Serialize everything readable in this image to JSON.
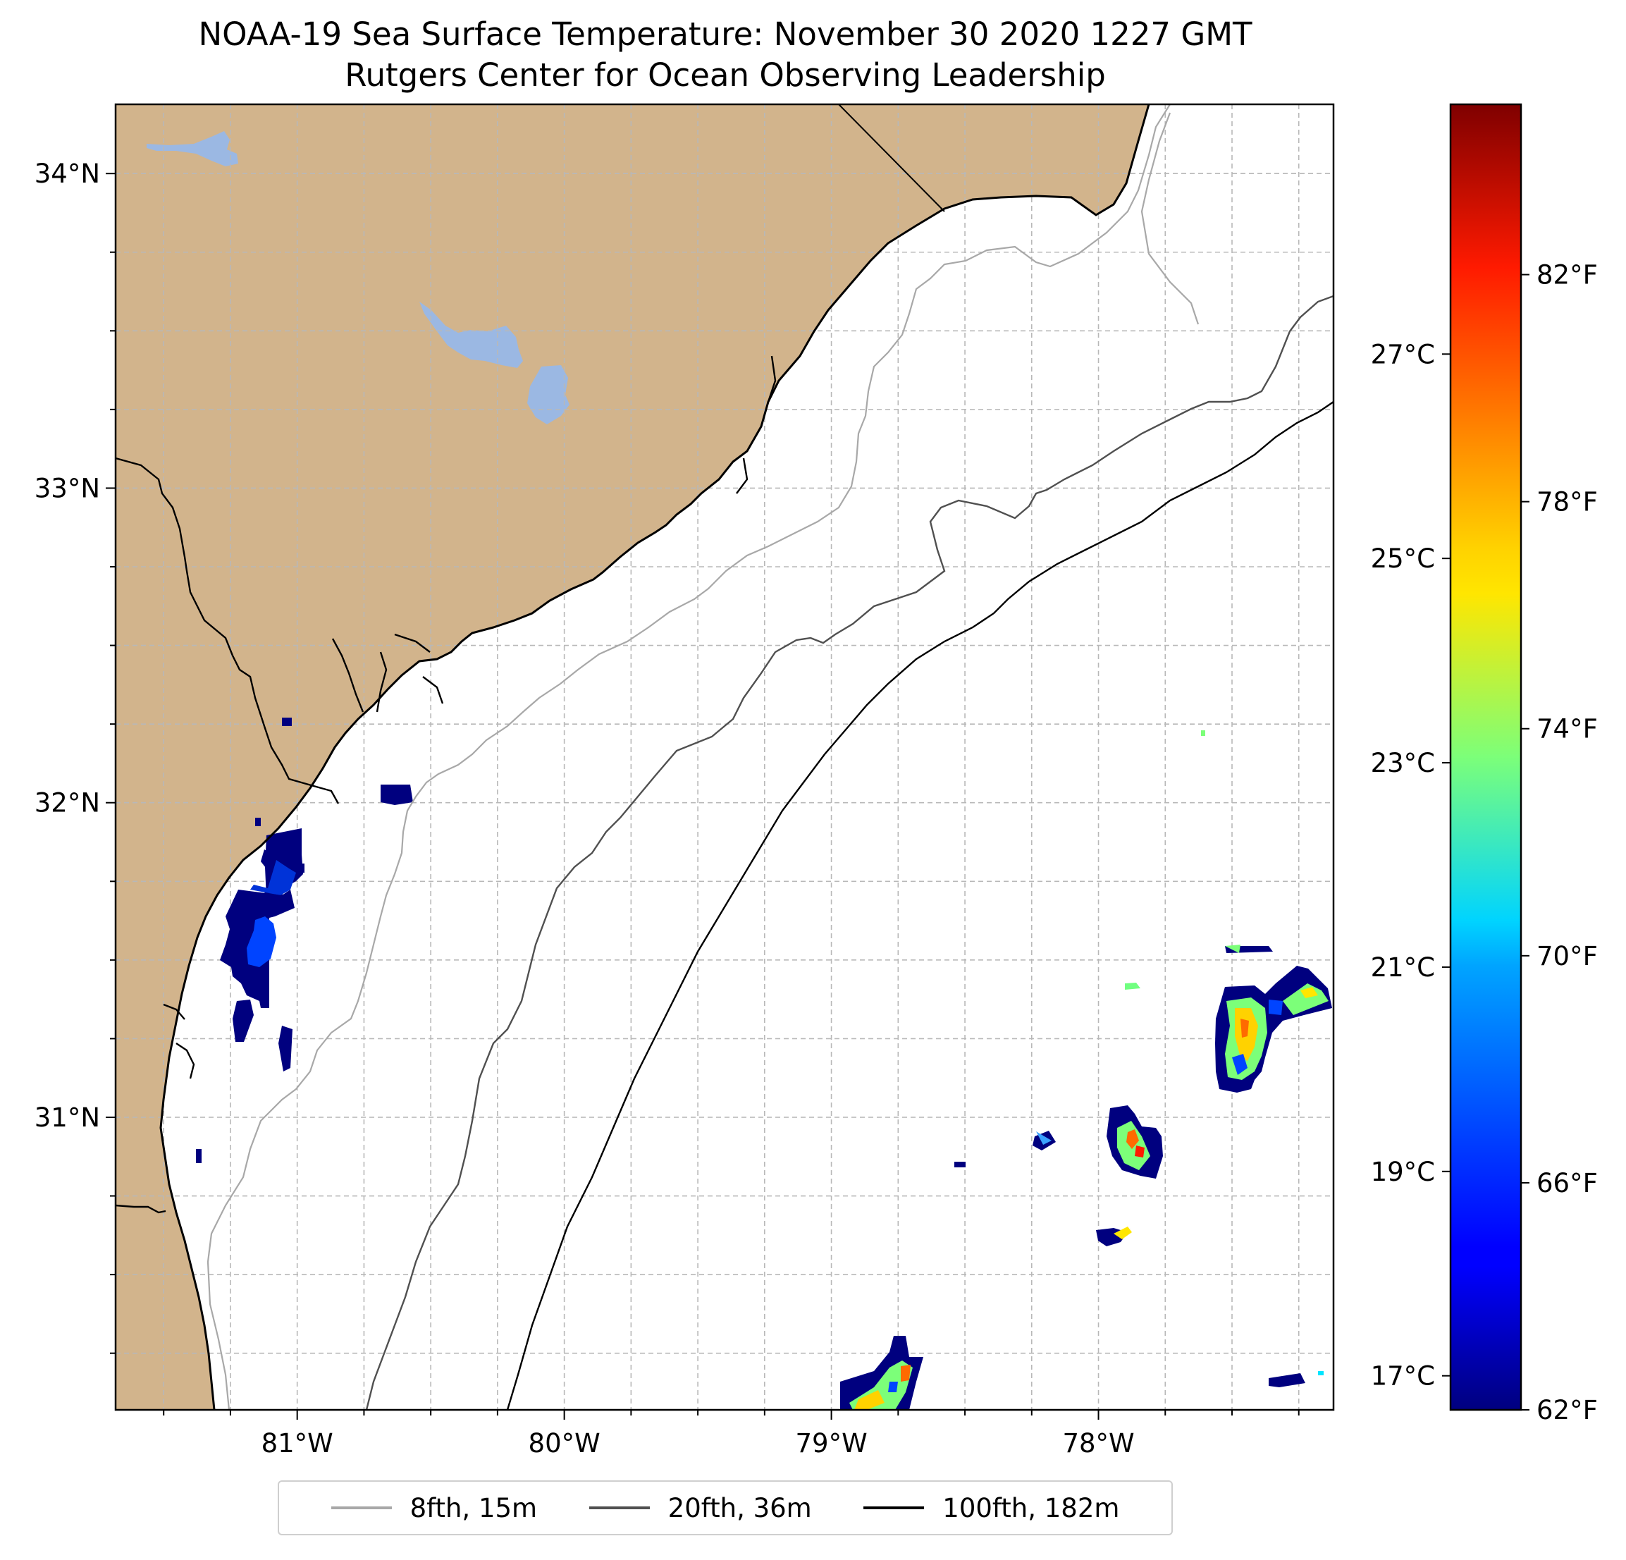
{
  "title": "NOAA-19 Sea Surface Temperature: November 30 2020 1227 GMT",
  "subtitle": "Rutgers Center for Ocean Observing Leadership",
  "map": {
    "lon_range": [
      -81.68,
      -77.12
    ],
    "lat_range": [
      30.07,
      34.22
    ],
    "lon_ticks": [
      {
        "value": -81,
        "label": "81°W"
      },
      {
        "value": -80,
        "label": "80°W"
      },
      {
        "value": -79,
        "label": "79°W"
      },
      {
        "value": -78,
        "label": "78°W"
      }
    ],
    "lat_ticks": [
      {
        "value": 31,
        "label": "31°N"
      },
      {
        "value": 32,
        "label": "32°N"
      },
      {
        "value": 33,
        "label": "33°N"
      },
      {
        "value": 34,
        "label": "34°N"
      }
    ],
    "land_color": "#d2b48c",
    "lake_color": "#9bb8e3",
    "grid": "dashed"
  },
  "colorbar": {
    "colormap": "jet",
    "fahrenheit_range": [
      62,
      85
    ],
    "fahrenheit_ticks": [
      {
        "value": 62,
        "label": "62°F"
      },
      {
        "value": 66,
        "label": "66°F"
      },
      {
        "value": 70,
        "label": "70°F"
      },
      {
        "value": 74,
        "label": "74°F"
      },
      {
        "value": 78,
        "label": "78°F"
      },
      {
        "value": 82,
        "label": "82°F"
      }
    ],
    "celsius_ticks": [
      {
        "value": 17,
        "label": "17°C"
      },
      {
        "value": 19,
        "label": "19°C"
      },
      {
        "value": 21,
        "label": "21°C"
      },
      {
        "value": 23,
        "label": "23°C"
      },
      {
        "value": 25,
        "label": "25°C"
      },
      {
        "value": 27,
        "label": "27°C"
      }
    ]
  },
  "legend": {
    "items": [
      {
        "label": "8fth, 15m",
        "color": "#a8a8a8"
      },
      {
        "label": "20fth, 36m",
        "color": "#505050"
      },
      {
        "label": "100fth, 182m",
        "color": "#000000"
      }
    ]
  }
}
